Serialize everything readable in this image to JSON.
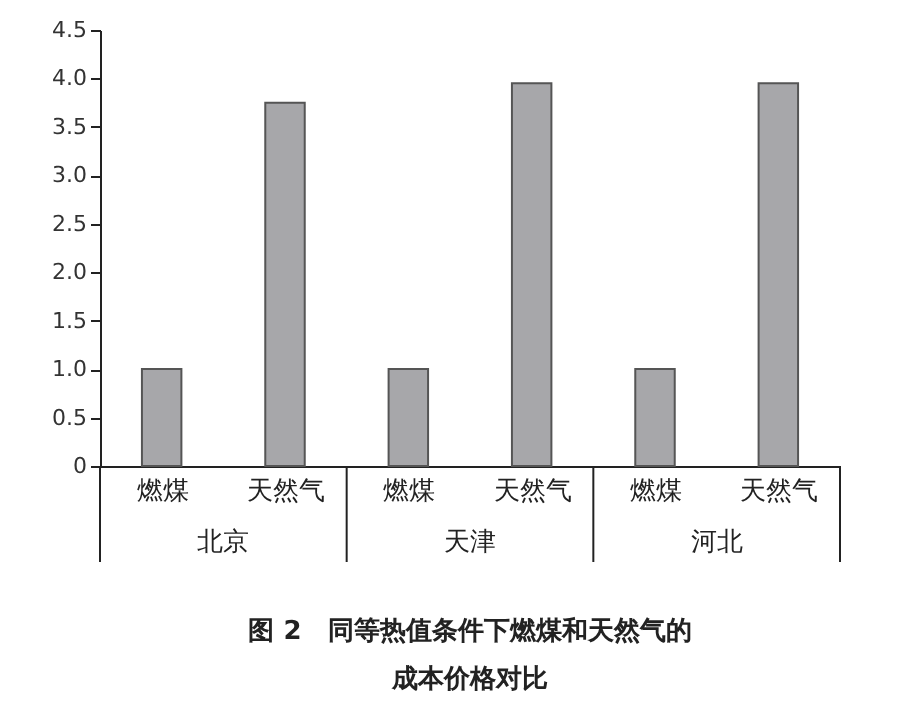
{
  "chart_data": {
    "type": "bar",
    "title": "图 2　同等热值条件下燃煤和天然气的成本价格对比",
    "categories": [
      "燃煤",
      "天然气",
      "燃煤",
      "天然气",
      "燃煤",
      "天然气"
    ],
    "values": [
      1.0,
      3.75,
      1.0,
      3.95,
      1.0,
      3.95
    ],
    "color": "#a7a7aa",
    "annotations": [
      "北京",
      "天津",
      "河北"
    ],
    "ylim": [
      0,
      4.5
    ],
    "yticks": [
      0,
      {
        "value": 0.5,
        "label": "0.5"
      },
      {
        "value": 1,
        "label": "1.0"
      },
      {
        "value": 1.5,
        "label": "1.5"
      },
      {
        "value": 2,
        "label": "2.0"
      },
      {
        "value": 2.5,
        "label": "2.5"
      },
      {
        "value": 3,
        "label": "3.0"
      },
      {
        "value": 3.5,
        "label": "3.5"
      },
      {
        "value": 4,
        "label": "4.0"
      },
      {
        "value": 4.5,
        "label": "4.5"
      }
    ],
    "grid": false
  }
}
